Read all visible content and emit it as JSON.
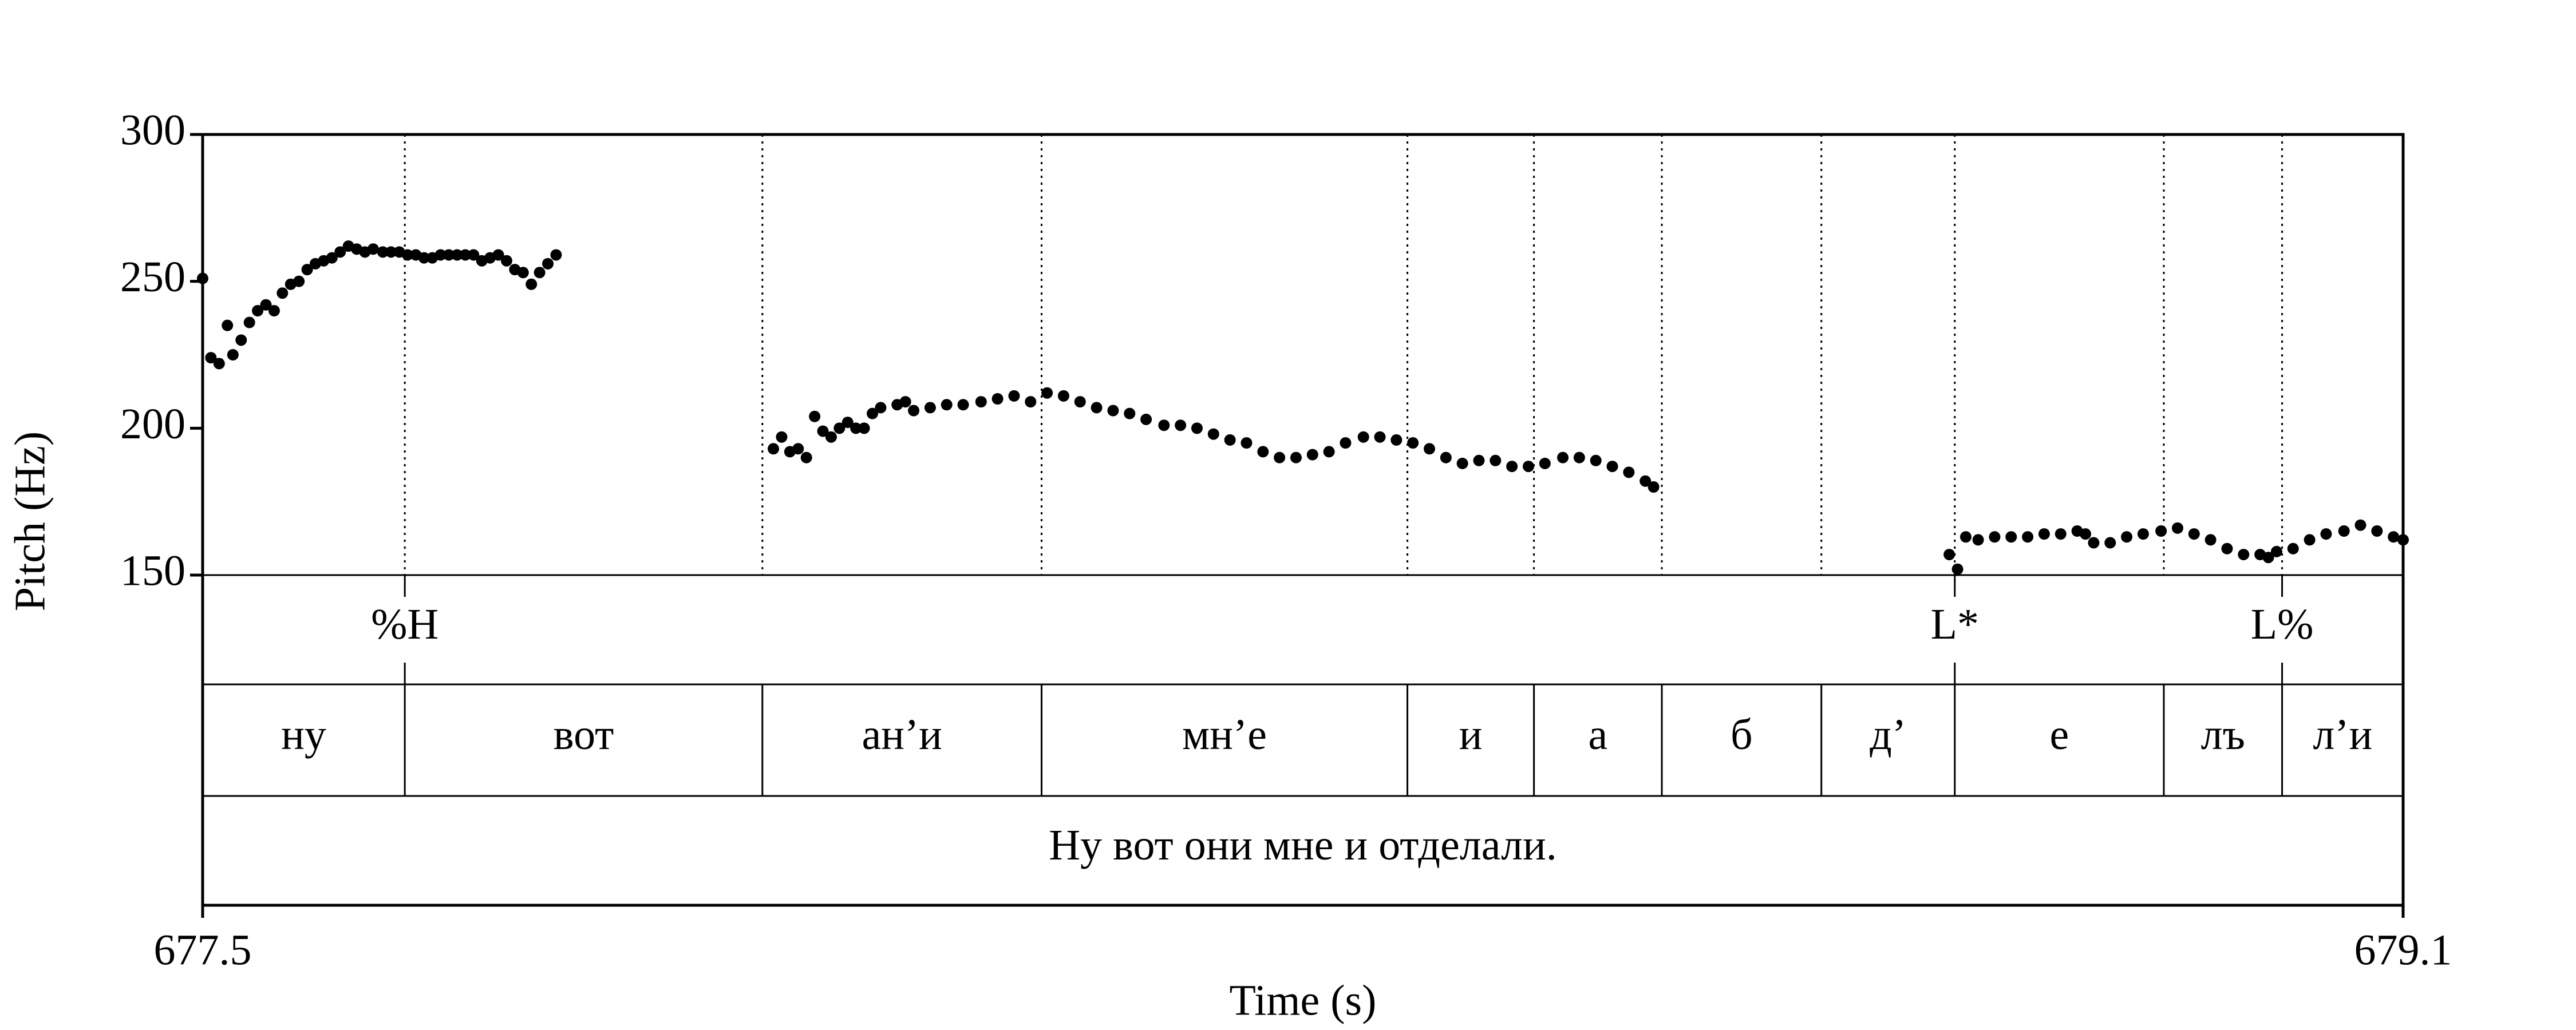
{
  "chart_data": {
    "type": "scatter",
    "x_label": "Time (s)",
    "y_label": "Pitch (Hz)",
    "xlim": [
      677.5,
      679.1
    ],
    "xticks": [
      677.5,
      679.1
    ],
    "ylim": [
      150,
      300
    ],
    "yticks": [
      150,
      200,
      250,
      300
    ],
    "color": "#000000",
    "x": [
      677.5,
      677.506,
      677.512,
      677.518,
      677.522,
      677.528,
      677.534,
      677.54,
      677.546,
      677.552,
      677.558,
      677.564,
      677.57,
      677.576,
      677.582,
      677.588,
      677.594,
      677.6,
      677.606,
      677.612,
      677.618,
      677.624,
      677.631,
      677.637,
      677.643,
      677.649,
      677.655,
      677.661,
      677.667,
      677.673,
      677.679,
      677.685,
      677.691,
      677.697,
      677.703,
      677.709,
      677.715,
      677.721,
      677.727,
      677.733,
      677.739,
      677.745,
      677.751,
      677.757,
      677.915,
      677.921,
      677.927,
      677.933,
      677.939,
      677.945,
      677.951,
      677.957,
      677.963,
      677.969,
      677.975,
      677.981,
      677.987,
      677.993,
      678.005,
      678.011,
      678.017,
      678.029,
      678.041,
      678.053,
      678.066,
      678.078,
      678.09,
      678.102,
      678.114,
      678.126,
      678.138,
      678.15,
      678.162,
      678.174,
      678.186,
      678.199,
      678.211,
      678.223,
      678.235,
      678.247,
      678.259,
      678.271,
      678.283,
      678.295,
      678.307,
      678.319,
      678.331,
      678.344,
      678.356,
      678.368,
      678.38,
      678.392,
      678.404,
      678.416,
      678.428,
      678.44,
      678.452,
      678.464,
      678.476,
      678.489,
      678.501,
      678.513,
      678.525,
      678.537,
      678.549,
      678.555,
      678.77,
      678.776,
      678.782,
      678.791,
      678.803,
      678.815,
      678.827,
      678.839,
      678.851,
      678.863,
      678.869,
      678.875,
      678.887,
      678.899,
      678.911,
      678.924,
      678.936,
      678.948,
      678.96,
      678.972,
      678.984,
      678.996,
      679.002,
      679.008,
      679.02,
      679.032,
      679.044,
      679.057,
      679.069,
      679.081,
      679.093,
      679.1
    ],
    "values": [
      251,
      224,
      222,
      235,
      225,
      230,
      236,
      240,
      242,
      240,
      246,
      249,
      250,
      254,
      256,
      257,
      258,
      260,
      262,
      261,
      260,
      261,
      260,
      260,
      260,
      259,
      259,
      258,
      258,
      259,
      259,
      259,
      259,
      259,
      257,
      258,
      259,
      257,
      254,
      253,
      249,
      253,
      256,
      259,
      193,
      197,
      192,
      193,
      190,
      204,
      199,
      197,
      200,
      202,
      200,
      200,
      205,
      207,
      208,
      209,
      206,
      207,
      208,
      208,
      209,
      210,
      211,
      209,
      212,
      211,
      209,
      207,
      206,
      205,
      203,
      201,
      201,
      200,
      198,
      196,
      195,
      192,
      190,
      190,
      191,
      192,
      195,
      197,
      197,
      196,
      195,
      193,
      190,
      188,
      189,
      189,
      187,
      187,
      188,
      190,
      190,
      189,
      187,
      185,
      182,
      180,
      157,
      152,
      163,
      162,
      163,
      163,
      163,
      164,
      164,
      165,
      164,
      161,
      161,
      163,
      164,
      165,
      166,
      164,
      162,
      159,
      157,
      157,
      156,
      158,
      159,
      162,
      164,
      165,
      167,
      165,
      163,
      162
    ],
    "tiers": [
      {
        "kind": "point",
        "times": [
          677.647,
          678.774,
          679.012
        ],
        "labels": [
          "%H",
          "L*",
          "L%"
        ]
      },
      {
        "kind": "interval",
        "boundaries": [
          677.647,
          677.907,
          678.11,
          678.376,
          678.468,
          678.561,
          678.677,
          678.774,
          678.926,
          679.012
        ],
        "labels": [
          "ну",
          "вот",
          "ан’и",
          "мн’е",
          "и",
          "а",
          "б",
          "д’",
          "е",
          "лъ",
          "л’и"
        ]
      },
      {
        "kind": "interval",
        "boundaries": [],
        "labels": [
          "Ну вот они мне и отделали."
        ]
      }
    ]
  }
}
